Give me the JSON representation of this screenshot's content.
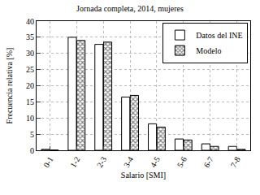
{
  "chart_data": {
    "type": "bar",
    "title": "Jornada completa, 2014, mujeres",
    "x_label": "Salario [SMI]",
    "y_label": "Frecuencia relativa [%]",
    "categories": [
      "0-1",
      "1-2",
      "2-3",
      "3-4",
      "4-5",
      "5-6",
      "6-7",
      "7-8"
    ],
    "series": [
      {
        "name": "Datos del INE",
        "color": "#ffffff",
        "values": [
          0.3,
          35,
          32.8,
          16.5,
          8.2,
          3.5,
          2,
          1.2
        ]
      },
      {
        "name": "Modelo",
        "color": "#808080",
        "marker": "x",
        "values": [
          0.1,
          34,
          33.5,
          17,
          7.2,
          3.2,
          1.2,
          0.3
        ]
      }
    ],
    "ylim": [
      0,
      40
    ],
    "yticks": [
      0,
      5,
      10,
      15,
      20,
      25,
      30,
      35,
      40
    ],
    "grid": true,
    "legend": "top-right"
  }
}
